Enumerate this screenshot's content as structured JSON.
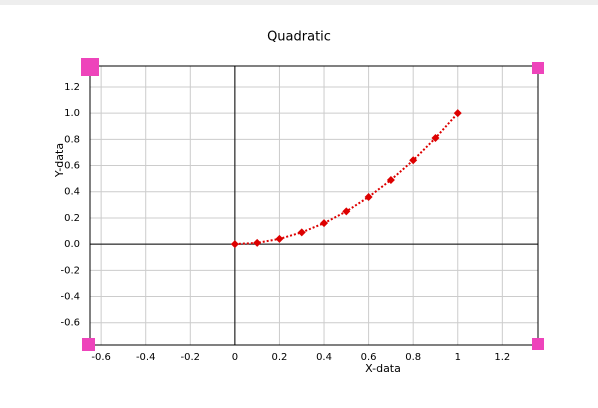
{
  "chart_data": {
    "type": "line",
    "title": "Quadratic",
    "x_label": "X-data",
    "y_label": "Y-data",
    "x": [
      0,
      0.1,
      0.2,
      0.3,
      0.4,
      0.5,
      0.6,
      0.7,
      0.8,
      0.9,
      1
    ],
    "series": [
      {
        "color": "#dd0000",
        "values": [
          0,
          0.01,
          0.04,
          0.09,
          0.16,
          0.25,
          0.36,
          0.49,
          0.64,
          0.81,
          1
        ]
      }
    ],
    "xlim": [
      -0.65,
      1.36
    ],
    "ylim": [
      -0.77,
      1.36
    ],
    "xticks": [
      -0.6,
      -0.4,
      -0.2,
      0,
      0.2,
      0.4,
      0.6,
      0.8,
      1,
      1.2
    ],
    "yticks": [
      -0.6,
      -0.4,
      -0.2,
      {
        "value": 0,
        "label": "0.0"
      },
      0.2,
      0.4,
      0.6,
      0.8,
      {
        "value": 1,
        "label": "1.0"
      },
      1.2
    ],
    "grid": true
  }
}
